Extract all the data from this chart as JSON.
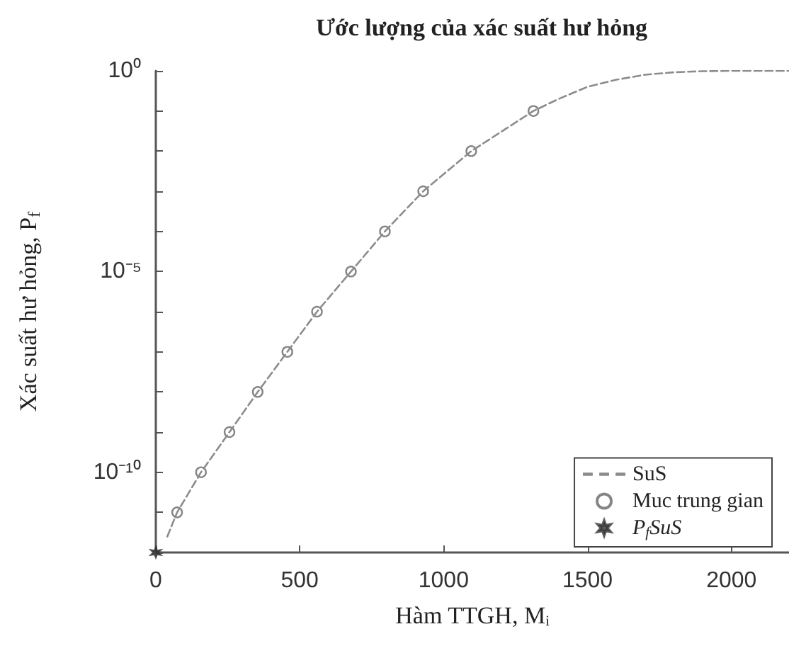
{
  "chart_data": {
    "type": "line",
    "title": "Ước lượng của xác suất hư hỏng",
    "xlabel": "Hàm TTGH, Mᵢ",
    "ylabel": "Xác suất hư hỏng, P$_{f}$",
    "log": "y",
    "grid": false,
    "legend": "bottom right",
    "xlim": [
      0,
      2200
    ],
    "xticks": [
      0,
      500,
      1000,
      1500,
      2000
    ],
    "ylim": [
      1e-12,
      1
    ],
    "yticks": [
      {
        "value": 1e-12,
        "label": null
      },
      {
        "value": 1e-11,
        "label": null
      },
      {
        "value": 1e-10,
        "label": "10⁻¹⁰"
      },
      {
        "value": 1e-09,
        "label": null
      },
      {
        "value": 1e-08,
        "label": null
      },
      {
        "value": 1e-07,
        "label": null
      },
      {
        "value": 1e-06,
        "label": null
      },
      {
        "value": 1e-05,
        "label": "10⁻⁵"
      },
      {
        "value": 0.0001,
        "label": null
      },
      {
        "value": 0.001,
        "label": null
      },
      {
        "value": 0.01,
        "label": null
      },
      {
        "value": 0.1,
        "label": null
      },
      {
        "value": 1,
        "label": "10⁰"
      }
    ],
    "series": [
      {
        "name": "SuS",
        "color": "#8c8c8c",
        "line_style": "dashed",
        "marker": "none",
        "x": [
          40,
          74,
          157,
          256,
          354,
          457,
          560,
          678,
          796,
          929,
          1096,
          1312,
          1400,
          1500,
          1600,
          1700,
          1800,
          1900,
          2000,
          2200
        ],
        "values": [
          2.5e-12,
          1e-11,
          1e-10,
          1e-09,
          1e-08,
          1e-07,
          1e-06,
          1e-05,
          0.0001,
          0.001,
          0.01,
          0.1,
          0.2,
          0.4,
          0.6,
          0.8,
          0.92,
          0.98,
          1,
          1
        ]
      },
      {
        "name": "Muc trung gian",
        "type": "scatter",
        "color": "#666666",
        "marker": "circle",
        "x": [
          74,
          157,
          256,
          354,
          457,
          560,
          678,
          796,
          929,
          1096,
          1312
        ],
        "values": [
          1e-11,
          1e-10,
          1e-09,
          1e-08,
          1e-07,
          1e-06,
          1e-05,
          0.0001,
          0.001,
          0.01,
          0.1
        ]
      },
      {
        "name": "P$_{f}$SuS",
        "type": "scatter",
        "color": "#333333",
        "marker": "cross",
        "x": [
          0
        ],
        "values": [
          1e-12
        ]
      }
    ]
  }
}
